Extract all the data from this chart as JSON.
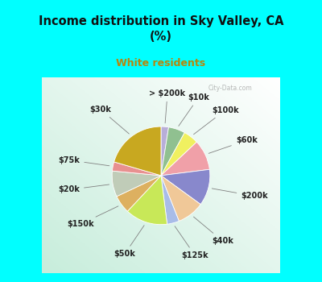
{
  "title": "Income distribution in Sky Valley, CA\n(%)",
  "subtitle": "White residents",
  "title_color": "#111111",
  "subtitle_color": "#b8860b",
  "bg_cyan": "#00ffff",
  "labels": [
    "> $200k",
    "$10k",
    "$100k",
    "$60k",
    "$200k",
    "$40k",
    "$125k",
    "$50k",
    "$150k",
    "$20k",
    "$75k",
    "$30k"
  ],
  "values": [
    2.5,
    5.5,
    5.0,
    10.0,
    12.0,
    9.0,
    4.0,
    14.0,
    6.0,
    8.5,
    3.0,
    20.5
  ],
  "colors": [
    "#b8aed8",
    "#90c090",
    "#f0f060",
    "#f0a0a8",
    "#8888cc",
    "#f0c898",
    "#a8bce8",
    "#c8e858",
    "#ddb060",
    "#c0ccb8",
    "#e89090",
    "#c8a820"
  ],
  "startangle": 90,
  "label_fontsize": 7.0,
  "label_color": "#222222"
}
